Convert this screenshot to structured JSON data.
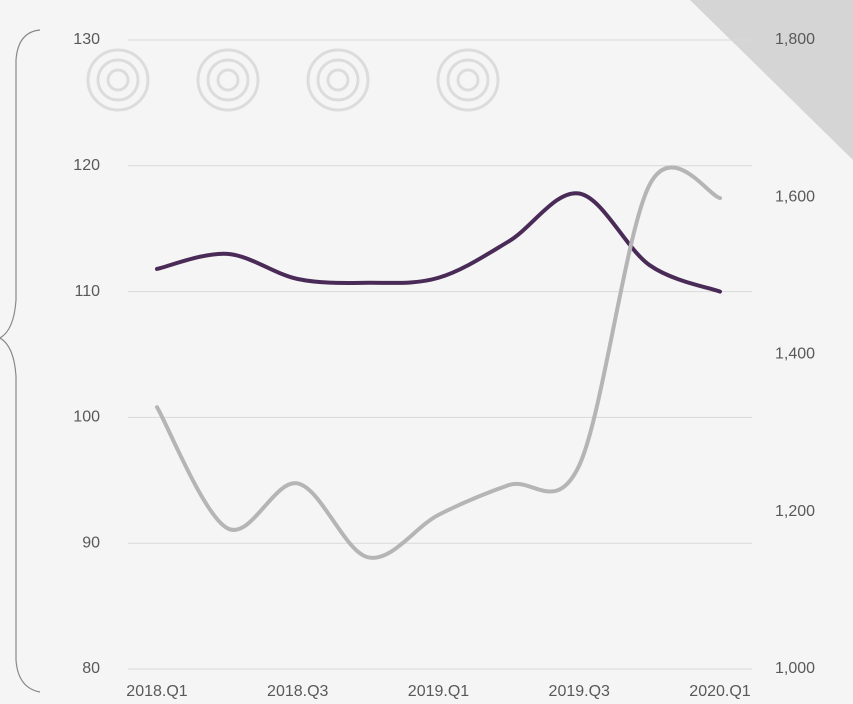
{
  "chart_data": {
    "type": "line",
    "categories": [
      "2018.Q1",
      null,
      "2018.Q3",
      null,
      "2019.Q1",
      null,
      "2019.Q3",
      null,
      "2020.Q1"
    ],
    "series": [
      {
        "color": "#4a2b57",
        "values": [
          111.8,
          113.0,
          111.0,
          110.7,
          111.1,
          114.0,
          117.8,
          112.1,
          110.0
        ]
      },
      {
        "color": "#b5b5b5",
        "axis": "y2",
        "values": [
          1333,
          1179,
          1236,
          1142,
          1196,
          1234,
          1259,
          1616,
          1599
        ]
      }
    ],
    "ylim": [
      80,
      130
    ],
    "yticks": [
      80,
      90,
      100,
      110,
      120,
      130
    ],
    "y2lim": [
      1000,
      1800
    ],
    "y2ticks": [
      {
        "value": 1000,
        "label": "1,000"
      },
      {
        "value": 1200,
        "label": "1,200"
      },
      {
        "value": 1400,
        "label": "1,400"
      },
      {
        "value": 1600,
        "label": "1,600"
      },
      {
        "value": 1800,
        "label": "1,800"
      }
    ],
    "grid": true
  }
}
